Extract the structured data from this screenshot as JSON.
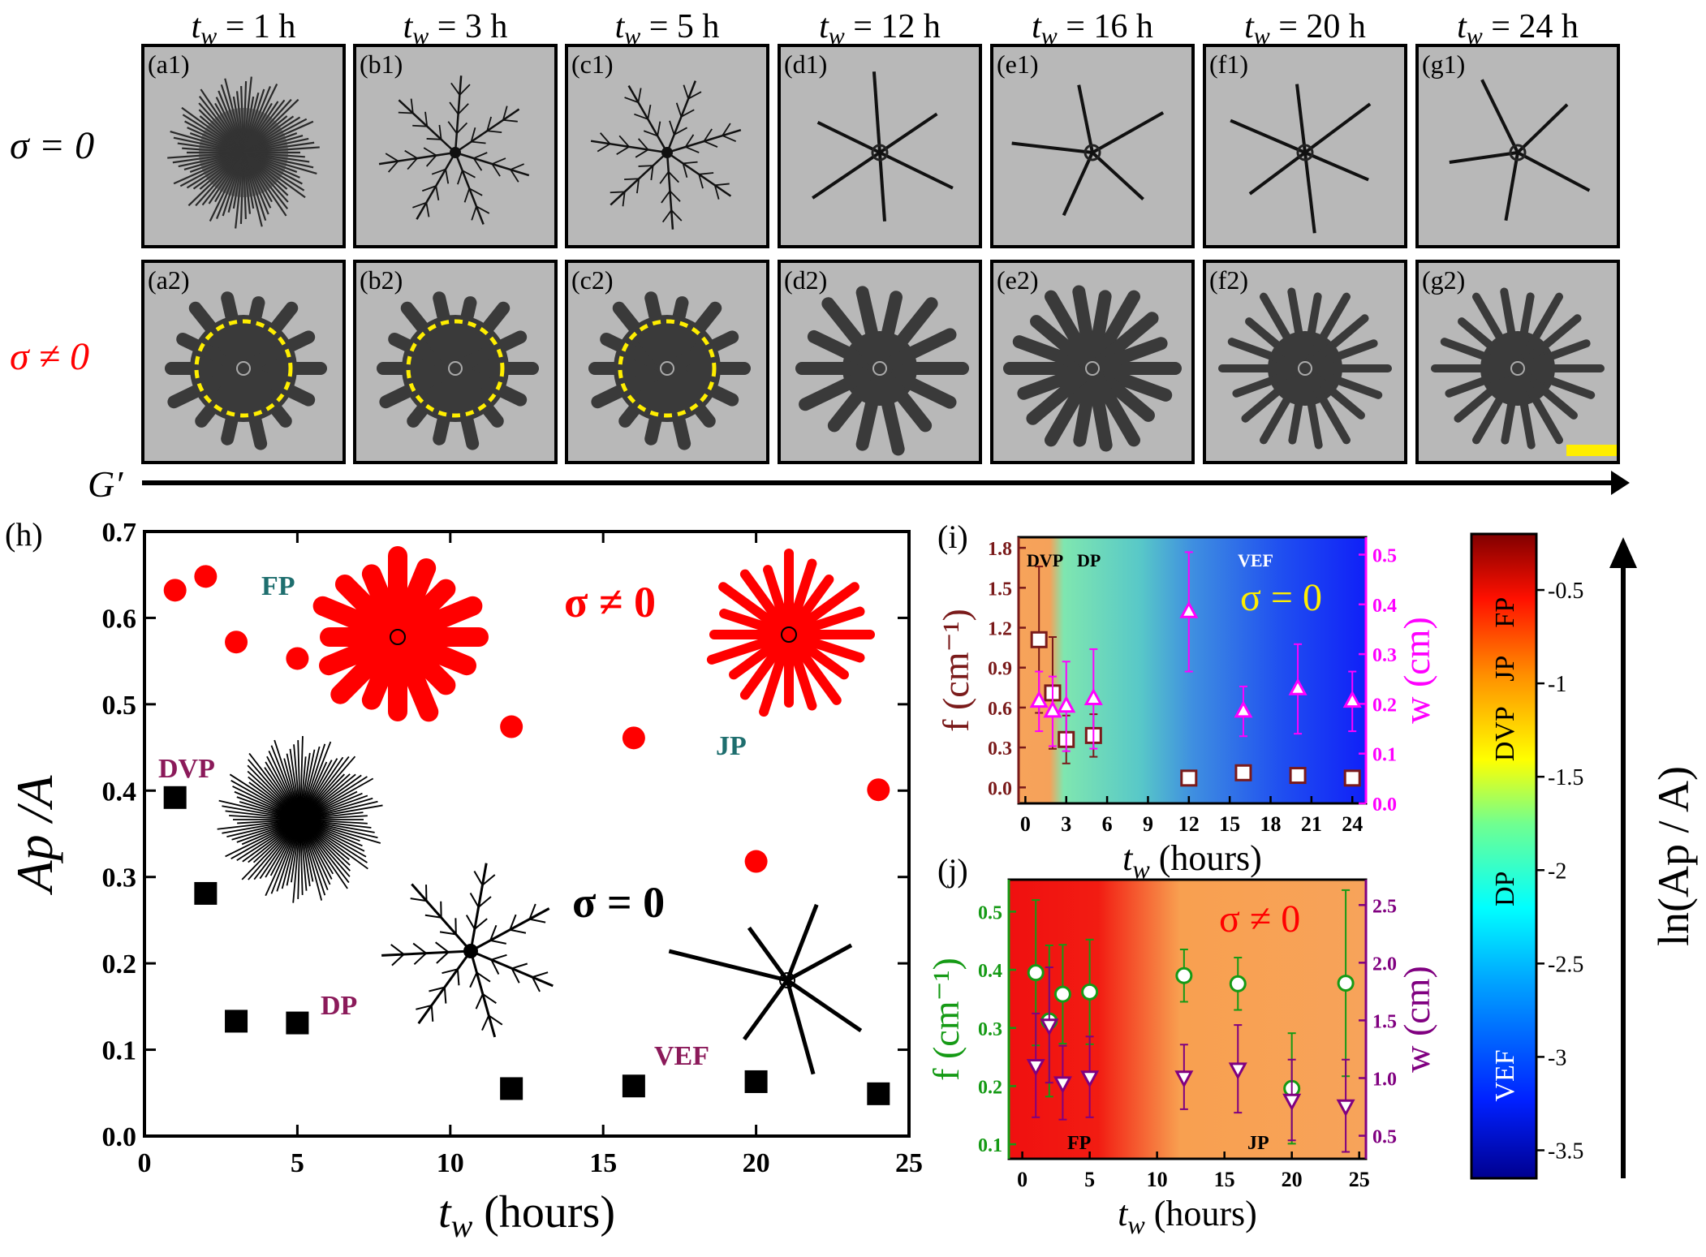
{
  "header": {
    "tw_labels": [
      "1 h",
      "3 h",
      "5 h",
      "12 h",
      "16 h",
      "20 h",
      "24 h"
    ],
    "tw_symbol": "t",
    "tw_sub": "w",
    "eq": " = "
  },
  "rows": {
    "row1_label": "σ = 0",
    "row2_label": "σ ≠ 0",
    "row1_panels": [
      "(a1)",
      "(b1)",
      "(c1)",
      "(d1)",
      "(e1)",
      "(f1)",
      "(g1)"
    ],
    "row2_panels": [
      "(a2)",
      "(b2)",
      "(c2)",
      "(d2)",
      "(e2)",
      "(f2)",
      "(g2)"
    ]
  },
  "arrow": {
    "label": "G′"
  },
  "colors": {
    "red": "#ff0000",
    "black": "#000000",
    "teal": "#1e6e6e",
    "purple_label": "#8b1a5a",
    "magenta": "#ff00ff",
    "darkred": "#7a1a1a",
    "green": "#159a15",
    "purple": "#800080",
    "yellow": "#ffee00",
    "gray_image": "#b8b8b8"
  },
  "chart_data": [
    {
      "id": "h",
      "type": "scatter",
      "panel_label": "(h)",
      "xlabel_main": "t",
      "xlabel_sub": "w",
      "xlabel_unit": " (hours)",
      "ylabel": "Ap /A",
      "xlim": [
        0,
        25
      ],
      "ylim": [
        0,
        0.7
      ],
      "xticks": [
        0,
        5,
        10,
        15,
        20,
        25
      ],
      "yticks": [
        0.0,
        0.1,
        0.2,
        0.3,
        0.4,
        0.5,
        0.6,
        0.7
      ],
      "series": [
        {
          "name": "σ ≠ 0",
          "marker": "circle",
          "color": "#ff0000",
          "x": [
            1,
            2,
            3,
            5,
            12,
            16,
            20,
            24
          ],
          "y": [
            0.632,
            0.648,
            0.572,
            0.553,
            0.474,
            0.461,
            0.318,
            0.401
          ]
        },
        {
          "name": "σ = 0",
          "marker": "square",
          "color": "#000000",
          "x": [
            1,
            2,
            3,
            5,
            12,
            16,
            20,
            24
          ],
          "y": [
            0.392,
            0.281,
            0.133,
            0.131,
            0.055,
            0.058,
            0.063,
            0.049
          ]
        }
      ],
      "annotations": {
        "FP": "FP",
        "JP": "JP",
        "DVP": "DVP",
        "DP": "DP",
        "VEF": "VEF",
        "sigma_nonzero": "σ ≠ 0",
        "sigma_zero": "σ = 0"
      }
    },
    {
      "id": "i",
      "type": "scatter",
      "panel_label": "(i)",
      "xlabel_main": "t",
      "xlabel_sub": "w",
      "xlabel_unit": " (hours)",
      "ylabel_left": "f (cm⁻¹)",
      "ylabel_right": "w (cm)",
      "xlim": [
        -0.5,
        25
      ],
      "ylim_left": [
        -0.12,
        1.88
      ],
      "ylim_right": [
        0,
        0.535
      ],
      "xticks": [
        0,
        3,
        6,
        9,
        12,
        15,
        18,
        21,
        24
      ],
      "yticks_left": [
        0.0,
        0.3,
        0.6,
        0.9,
        1.2,
        1.5,
        1.8
      ],
      "yticks_right": [
        0.0,
        0.1,
        0.2,
        0.3,
        0.4,
        0.5
      ],
      "region_labels": {
        "DVP": "DVP",
        "DP": "DP",
        "VEF": "VEF"
      },
      "inset_label": "σ = 0",
      "series": [
        {
          "name": "f",
          "axis": "left",
          "marker": "square",
          "color": "#7a1a1a",
          "x": [
            1,
            2,
            3,
            5,
            12,
            16,
            20,
            24
          ],
          "y": [
            1.11,
            0.71,
            0.36,
            0.39,
            0.07,
            0.11,
            0.09,
            0.07
          ],
          "err": [
            0.55,
            0.42,
            0.18,
            0.16,
            0.02,
            0.02,
            0.02,
            0.02
          ]
        },
        {
          "name": "w",
          "axis": "right",
          "marker": "triangle-up",
          "color": "#ff00ff",
          "x": [
            1,
            2,
            3,
            5,
            12,
            16,
            20,
            24
          ],
          "y": [
            0.205,
            0.185,
            0.195,
            0.21,
            0.385,
            0.185,
            0.23,
            0.205
          ],
          "err": [
            0.06,
            0.07,
            0.09,
            0.1,
            0.12,
            0.05,
            0.09,
            0.06
          ]
        }
      ]
    },
    {
      "id": "j",
      "type": "scatter",
      "panel_label": "(j)",
      "xlabel_main": "t",
      "xlabel_sub": "w",
      "xlabel_unit": " (hours)",
      "ylabel_left": "f (cm⁻¹)",
      "ylabel_right": "w (cm)",
      "xlim": [
        -1,
        25.5
      ],
      "ylim_left": [
        0.075,
        0.555
      ],
      "ylim_right": [
        0.3,
        2.72
      ],
      "xticks": [
        0,
        5,
        10,
        15,
        20,
        25
      ],
      "yticks_left": [
        0.1,
        0.2,
        0.3,
        0.4,
        0.5
      ],
      "yticks_right": [
        0.5,
        1.0,
        1.5,
        2.0,
        2.5
      ],
      "region_labels": {
        "FP": "FP",
        "JP": "JP"
      },
      "inset_label": "σ ≠ 0",
      "series": [
        {
          "name": "f",
          "axis": "left",
          "marker": "circle",
          "color": "#159a15",
          "x": [
            1,
            2,
            3,
            5,
            12,
            16,
            20,
            24
          ],
          "y": [
            0.395,
            0.312,
            0.358,
            0.362,
            0.39,
            0.376,
            0.196,
            0.377
          ],
          "err": [
            0.125,
            0.13,
            0.085,
            0.09,
            0.045,
            0.045,
            0.095,
            0.16
          ]
        },
        {
          "name": "w",
          "axis": "right",
          "marker": "triangle-down",
          "color": "#800080",
          "x": [
            1,
            2,
            3,
            5,
            12,
            16,
            20,
            24
          ],
          "y": [
            1.11,
            1.46,
            0.96,
            1.01,
            1.01,
            1.08,
            0.81,
            0.76
          ],
          "err": [
            0.45,
            0.5,
            0.32,
            0.35,
            0.28,
            0.38,
            0.35,
            0.4
          ]
        }
      ]
    },
    {
      "id": "colorbar",
      "type": "heatmap",
      "label": "ln(Ap / A)",
      "range": [
        -3.65,
        -0.2
      ],
      "ticks": [
        -0.5,
        -1,
        -1.5,
        -2,
        -2.5,
        -3,
        -3.5
      ],
      "tick_labels": [
        "-0.5",
        "-1",
        "-1.5",
        "-2",
        "-2.5",
        "-3",
        "-3.5"
      ],
      "regions": [
        "FP",
        "JP",
        "DVP",
        "DP",
        "VEF"
      ]
    }
  ]
}
